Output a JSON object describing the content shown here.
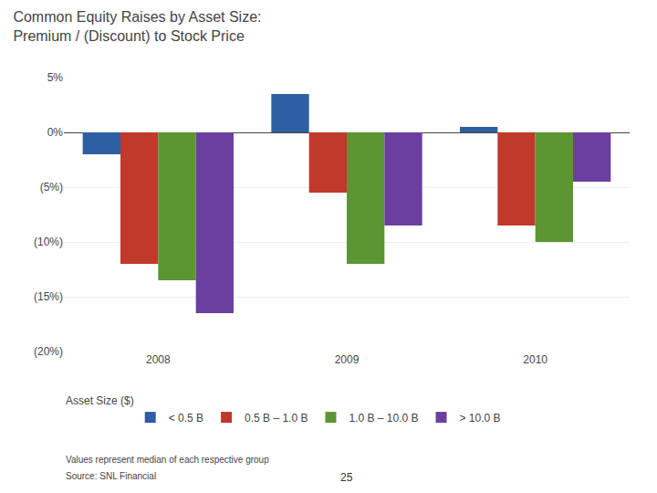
{
  "chart_data": {
    "type": "bar",
    "title": "Common Equity Raises by Asset Size:",
    "subtitle": "Premium / (Discount) to Stock Price",
    "categories": [
      "2008",
      "2009",
      "2010"
    ],
    "series": [
      {
        "name": "< 0.5 B",
        "color": "#2E5FA3",
        "values": [
          -2.0,
          3.5,
          0.5
        ]
      },
      {
        "name": "0.5 B – 1.0 B",
        "color": "#C0392B",
        "values": [
          -12.0,
          -5.5,
          -8.5
        ]
      },
      {
        "name": "1.0 B – 10.0 B",
        "color": "#5B9632",
        "values": [
          -13.5,
          -12.0,
          -10.0
        ]
      },
      {
        "name": "> 10.0 B",
        "color": "#6B3FA0",
        "values": [
          -16.5,
          -8.5,
          -4.5
        ]
      }
    ],
    "legend_title": "Asset Size ($)",
    "legend": "bottom",
    "ylim": [
      -20,
      5
    ],
    "yticks": [
      {
        "value": 5,
        "label": "5%"
      },
      {
        "value": 0,
        "label": "0%"
      },
      {
        "value": -5,
        "label": "(5%)"
      },
      {
        "value": -10,
        "label": "(10%)"
      },
      {
        "value": -15,
        "label": "(15%)"
      },
      {
        "value": -20,
        "label": "(20%)"
      }
    ],
    "grid": true,
    "annotations": [
      "Values represent median of each respective group",
      "Source: SNL Financial",
      "25"
    ]
  }
}
